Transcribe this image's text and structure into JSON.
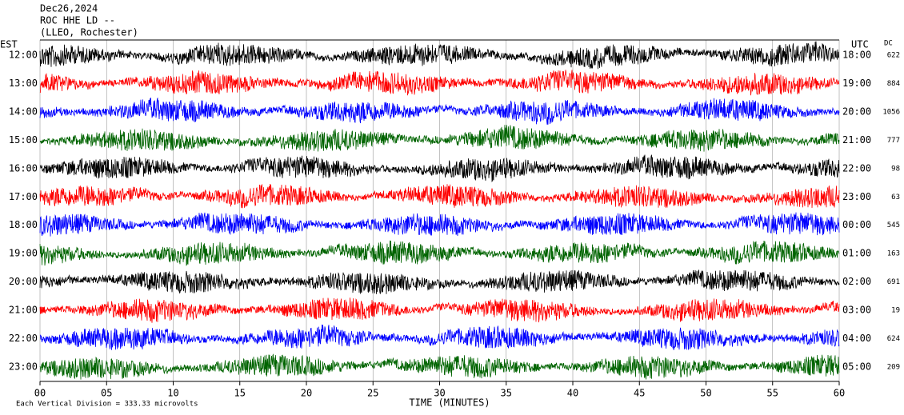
{
  "chart_data": {
    "type": "helicorder",
    "title_lines": [
      "Dec26,2024",
      "ROC HHE LD --",
      "(LLEO, Rochester)"
    ],
    "left_axis_label": "EST",
    "right_axis_label": "UTC",
    "dc_label": "DC",
    "est_labels": [
      "12:00",
      "13:00",
      "14:00",
      "15:00",
      "16:00",
      "17:00",
      "18:00",
      "19:00",
      "20:00",
      "21:00",
      "22:00",
      "23:00"
    ],
    "utc_labels": [
      "18:00",
      "19:00",
      "20:00",
      "21:00",
      "22:00",
      "23:00",
      "00:00",
      "01:00",
      "02:00",
      "03:00",
      "04:00",
      "05:00"
    ],
    "dc_values": [
      622,
      884,
      1056,
      777,
      98,
      63,
      545,
      163,
      691,
      19,
      624,
      209
    ],
    "trace_colors": [
      "#000000",
      "#ff0000",
      "#0000ff",
      "#006400"
    ],
    "xlabel": "TIME (MINUTES)",
    "xlim": [
      0,
      60
    ],
    "xticks": [
      {
        "value": 0,
        "label": "00"
      },
      {
        "value": 5,
        "label": "05"
      },
      10,
      15,
      20,
      25,
      30,
      35,
      40,
      45,
      50,
      55,
      60
    ],
    "footnote": "Each Vertical Division = 333.33 microvolts"
  }
}
